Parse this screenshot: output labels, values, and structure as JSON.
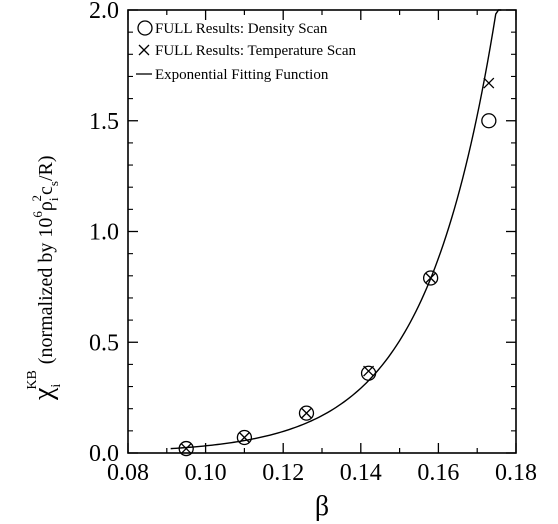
{
  "chart_data": {
    "type": "scatter",
    "title": "",
    "xlabel": "β",
    "ylabel": {
      "symbol": "χ",
      "sub": "i",
      "sup": "KB",
      "text_normalized": "(normalized by 10",
      "sup_6": "6",
      "rho": "ρ",
      "rho_sub": "i",
      "rho_sup": "2",
      "c": "c",
      "c_sub": "s",
      "close": "/R)"
    },
    "xlim": [
      0.08,
      0.18
    ],
    "ylim": [
      0.0,
      2.0
    ],
    "x_ticks": [
      "0.08",
      "0.10",
      "0.12",
      "0.14",
      "0.16",
      "0.18"
    ],
    "y_ticks": [
      "0.0",
      "0.5",
      "1.0",
      "1.5",
      "2.0"
    ],
    "grid": false,
    "legend_position": "top-left",
    "series": [
      {
        "name": "FULL Results: Density Scan",
        "marker": "circle",
        "points": [
          [
            0.095,
            0.02
          ],
          [
            0.11,
            0.07
          ],
          [
            0.126,
            0.18
          ],
          [
            0.142,
            0.36
          ],
          [
            0.158,
            0.79
          ],
          [
            0.173,
            1.5
          ]
        ]
      },
      {
        "name": "FULL Results: Temperature Scan",
        "marker": "x",
        "points": [
          [
            0.095,
            0.02
          ],
          [
            0.11,
            0.07
          ],
          [
            0.126,
            0.18
          ],
          [
            0.142,
            0.37
          ],
          [
            0.158,
            0.79
          ],
          [
            0.173,
            1.67
          ]
        ]
      },
      {
        "name": "Exponential Fitting Function",
        "marker": "line",
        "fit": {
          "a": 0.0001325,
          "b": 55.0,
          "x_start": 0.091,
          "x_end": 0.1762
        }
      }
    ]
  }
}
